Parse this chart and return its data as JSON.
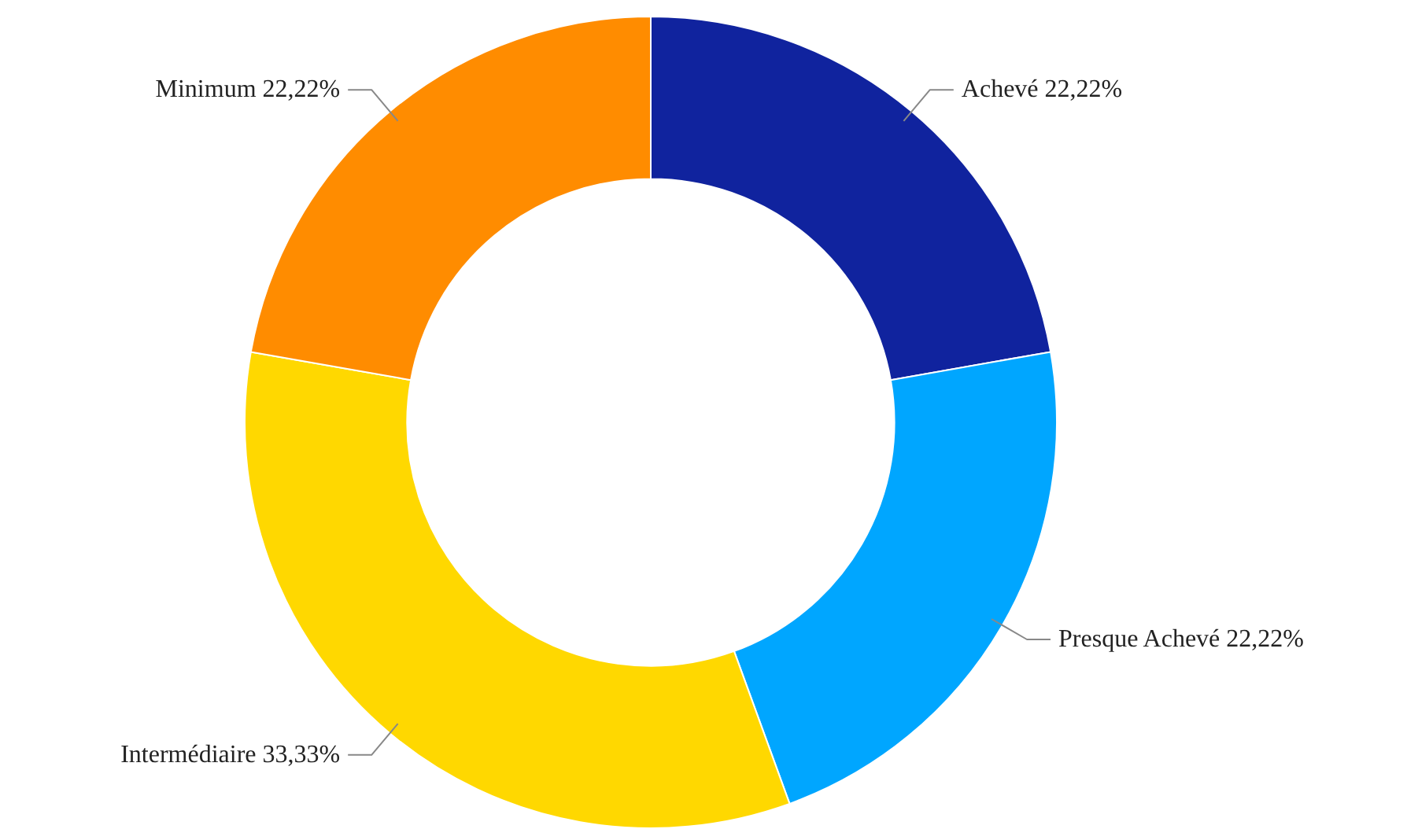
{
  "chart_data": {
    "type": "donut",
    "categories": [
      "Achevé",
      "Presque Achevé",
      "Intermédiaire",
      "Minimum"
    ],
    "values": [
      22.22,
      22.22,
      33.33,
      22.22
    ],
    "value_labels": [
      "22,22%",
      "22,22%",
      "33,33%",
      "22,22%"
    ],
    "colors": [
      "#10239e",
      "#00a6ff",
      "#ffd800",
      "#ff8c00"
    ]
  }
}
